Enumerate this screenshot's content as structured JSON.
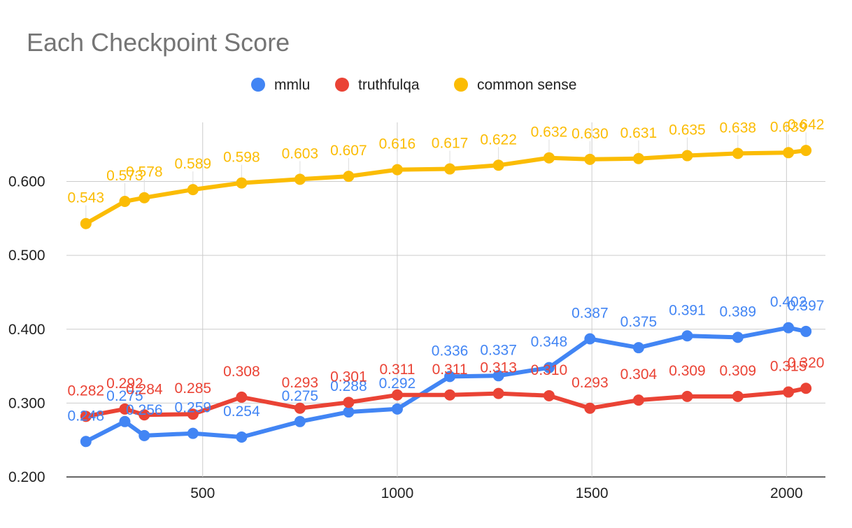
{
  "chart_data": {
    "type": "line",
    "title": "Each Checkpoint Score",
    "xlabel": "",
    "ylabel": "",
    "x": [
      200,
      300,
      350,
      475,
      600,
      750,
      875,
      1000,
      1135,
      1260,
      1390,
      1495,
      1620,
      1745,
      1875,
      2005,
      2050
    ],
    "xlim": [
      150,
      2100
    ],
    "ylim": [
      0.2,
      0.68
    ],
    "xticks": [
      "500",
      "1000",
      "1500",
      "2000"
    ],
    "xtick_values": [
      500,
      1000,
      1500,
      2000
    ],
    "yticks": [
      "0.200",
      "0.300",
      "0.400",
      "0.500",
      "0.600"
    ],
    "ytick_values": [
      0.2,
      0.3,
      0.4,
      0.5,
      0.6
    ],
    "grid": true,
    "legend_position": "top",
    "series": [
      {
        "name": "mmlu",
        "color": "#4285F4",
        "values": [
          0.248,
          0.275,
          0.256,
          0.259,
          0.254,
          0.275,
          0.288,
          0.292,
          0.336,
          0.337,
          0.348,
          0.387,
          0.375,
          0.391,
          0.389,
          0.402,
          0.397
        ],
        "labels": [
          "0.248",
          "0.275",
          "0.256",
          "0.259",
          "0.254",
          "0.275",
          "0.288",
          "0.292",
          "0.336",
          "0.337",
          "0.348",
          "0.387",
          "0.375",
          "0.391",
          "0.389",
          "0.402",
          "0.397"
        ]
      },
      {
        "name": "truthfulqa",
        "color": "#EA4335",
        "values": [
          0.282,
          0.292,
          0.284,
          0.285,
          0.308,
          0.293,
          0.301,
          0.311,
          0.311,
          0.313,
          0.31,
          0.293,
          0.304,
          0.309,
          0.309,
          0.315,
          0.32
        ],
        "labels": [
          "0.282",
          "0.292",
          "0.284",
          "0.285",
          "0.308",
          "0.293",
          "0.301",
          "0.311",
          "0.311",
          "0.313",
          "0.310",
          "0.293",
          "0.304",
          "0.309",
          "0.309",
          "0.315",
          "0.320"
        ]
      },
      {
        "name": "common sense",
        "color": "#FBBC04",
        "values": [
          0.543,
          0.573,
          0.578,
          0.589,
          0.598,
          0.603,
          0.607,
          0.616,
          0.617,
          0.622,
          0.632,
          0.63,
          0.631,
          0.635,
          0.638,
          0.639,
          0.642
        ],
        "labels": [
          "0.543",
          "0.573",
          "0.578",
          "0.589",
          "0.598",
          "0.603",
          "0.607",
          "0.616",
          "0.617",
          "0.622",
          "0.632",
          "0.630",
          "0.631",
          "0.635",
          "0.638",
          "0.639",
          "0.642"
        ]
      }
    ]
  }
}
